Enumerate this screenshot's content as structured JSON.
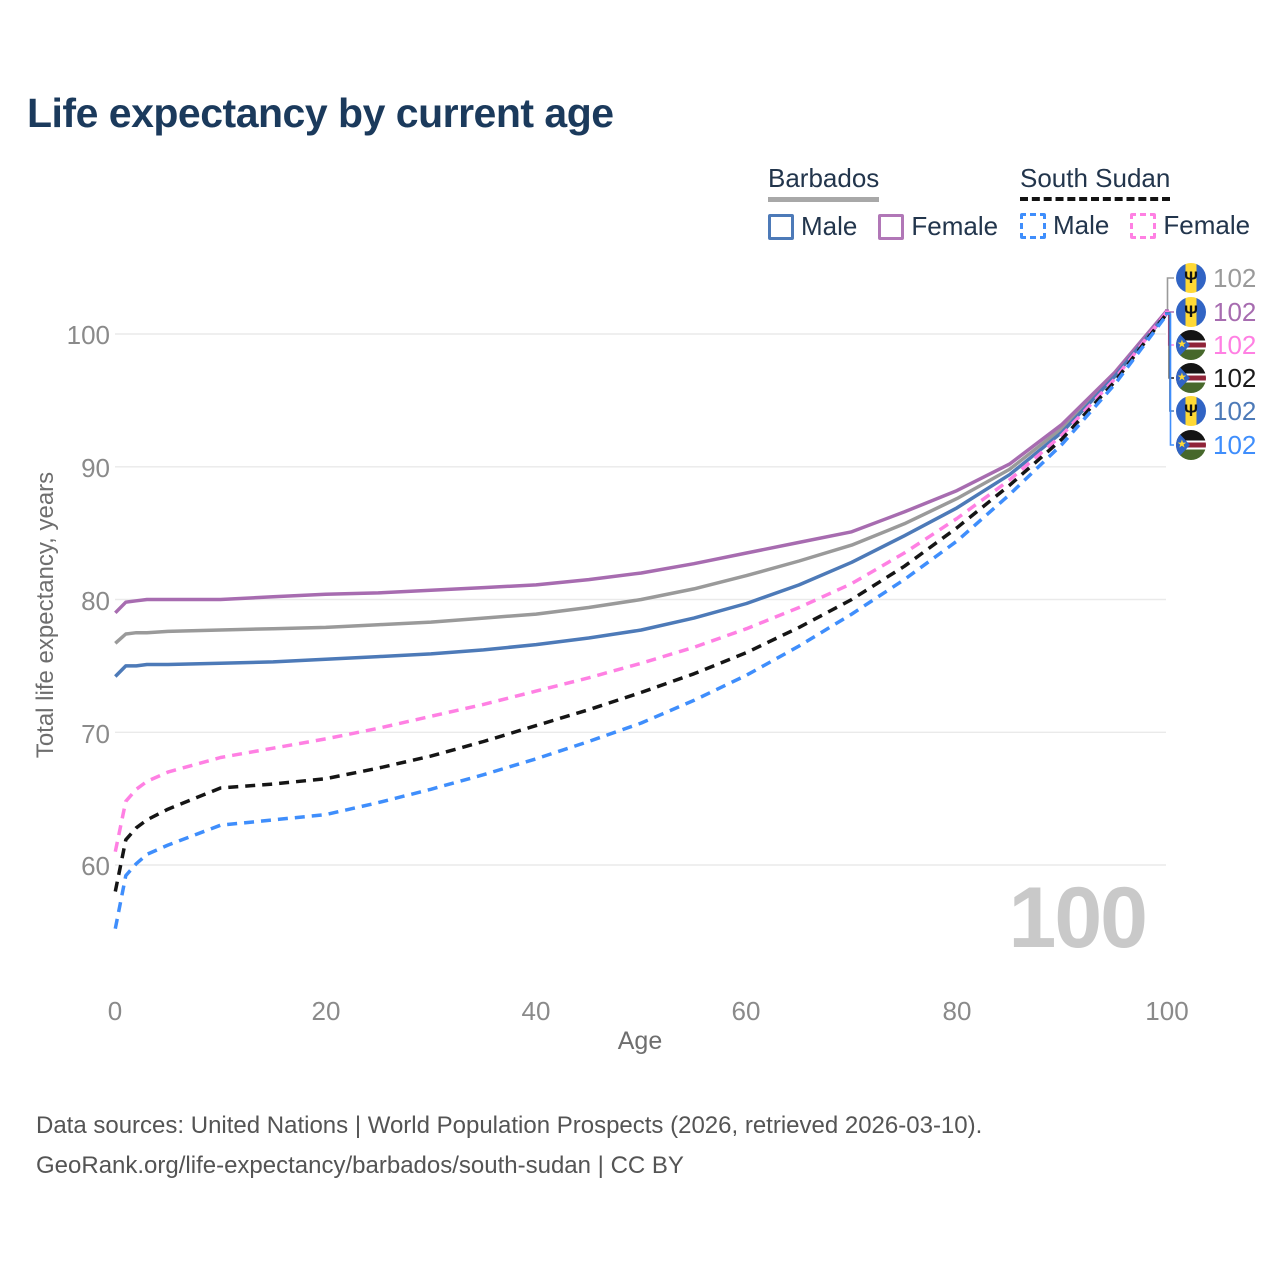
{
  "title": "Life expectancy by current age",
  "legend": {
    "groups": [
      {
        "name": "Barbados",
        "line_style": "solid",
        "underline_color": "#a8a8a8",
        "items": [
          {
            "label": "Male",
            "color": "#4d7ab8"
          },
          {
            "label": "Female",
            "color": "#b177b7"
          }
        ]
      },
      {
        "name": "South Sudan",
        "line_style": "dashed",
        "underline_color": "#131313",
        "items": [
          {
            "label": "Male",
            "color": "#3f8efc"
          },
          {
            "label": "Female",
            "color": "#ff80e3"
          }
        ]
      }
    ]
  },
  "chart_data": {
    "type": "line",
    "title": "Life expectancy by current age",
    "xlabel": "Age",
    "ylabel": "Total life expectancy, years",
    "xticks": [
      0,
      20,
      40,
      60,
      80,
      100
    ],
    "yticks": [
      60,
      70,
      80,
      90,
      100
    ],
    "xlim": [
      0,
      100
    ],
    "ylim": [
      55,
      103
    ],
    "grid": "horizontal-only",
    "legend_position": "top-right",
    "x": [
      0,
      1,
      2,
      3,
      5,
      10,
      15,
      20,
      25,
      30,
      35,
      40,
      45,
      50,
      55,
      60,
      65,
      70,
      75,
      80,
      85,
      90,
      95,
      100
    ],
    "series": [
      {
        "id": "bb_total",
        "country": "Barbados",
        "sex": "all",
        "color": "#9a9a9a",
        "dashed": false,
        "values": [
          76.7,
          77.4,
          77.5,
          77.5,
          77.6,
          77.7,
          77.8,
          77.9,
          78.1,
          78.3,
          78.6,
          78.9,
          79.4,
          80.0,
          80.8,
          81.8,
          82.9,
          84.1,
          85.7,
          87.6,
          89.8,
          92.9,
          96.9,
          101.7
        ]
      },
      {
        "id": "bb_female",
        "country": "Barbados",
        "sex": "female",
        "color": "#a76cb0",
        "dashed": false,
        "values": [
          79.0,
          79.8,
          79.9,
          80.0,
          80.0,
          80.0,
          80.2,
          80.4,
          80.5,
          80.7,
          80.9,
          81.1,
          81.5,
          82.0,
          82.7,
          83.5,
          84.3,
          85.1,
          86.6,
          88.2,
          90.2,
          93.2,
          97.1,
          101.8
        ]
      },
      {
        "id": "bb_male",
        "country": "Barbados",
        "sex": "male",
        "color": "#4d7ab8",
        "dashed": false,
        "values": [
          74.2,
          75.0,
          75.0,
          75.1,
          75.1,
          75.2,
          75.3,
          75.5,
          75.7,
          75.9,
          76.2,
          76.6,
          77.1,
          77.7,
          78.6,
          79.7,
          81.1,
          82.8,
          84.8,
          86.9,
          89.4,
          92.6,
          96.8,
          101.6
        ]
      },
      {
        "id": "ss_female",
        "country": "South Sudan",
        "sex": "female",
        "color": "#ff80e3",
        "dashed": true,
        "values": [
          61.0,
          64.8,
          65.7,
          66.3,
          67.0,
          68.1,
          68.8,
          69.5,
          70.3,
          71.2,
          72.1,
          73.1,
          74.1,
          75.2,
          76.4,
          77.8,
          79.4,
          81.2,
          83.5,
          86.1,
          89.0,
          92.4,
          96.6,
          101.7
        ]
      },
      {
        "id": "ss_total",
        "country": "South Sudan",
        "sex": "all",
        "color": "#151515",
        "dashed": true,
        "values": [
          58.0,
          61.9,
          62.8,
          63.4,
          64.2,
          65.8,
          66.1,
          66.5,
          67.3,
          68.2,
          69.3,
          70.5,
          71.7,
          73.0,
          74.4,
          76.0,
          77.9,
          80.0,
          82.5,
          85.4,
          88.6,
          92.1,
          96.4,
          101.6
        ]
      },
      {
        "id": "ss_male",
        "country": "South Sudan",
        "sex": "male",
        "color": "#3f8efc",
        "dashed": true,
        "values": [
          55.2,
          59.2,
          60.1,
          60.8,
          61.5,
          63.0,
          63.4,
          63.8,
          64.7,
          65.7,
          66.8,
          68.0,
          69.3,
          70.7,
          72.4,
          74.3,
          76.5,
          78.9,
          81.5,
          84.4,
          87.9,
          91.7,
          96.2,
          101.5
        ]
      }
    ]
  },
  "end_labels": {
    "rows": [
      {
        "flag": "barbados",
        "value": "102",
        "color": "#9a9a9a",
        "series_id": "bb_total"
      },
      {
        "flag": "barbados",
        "value": "102",
        "color": "#a76cb0",
        "series_id": "bb_female"
      },
      {
        "flag": "south-sudan",
        "value": "102",
        "color": "#ff80e3",
        "series_id": "ss_female"
      },
      {
        "flag": "south-sudan",
        "value": "102",
        "color": "#1a1a1a",
        "series_id": "ss_total"
      },
      {
        "flag": "barbados",
        "value": "102",
        "color": "#4d7ab8",
        "series_id": "bb_male"
      },
      {
        "flag": "south-sudan",
        "value": "102",
        "color": "#3f8efc",
        "series_id": "ss_male"
      }
    ]
  },
  "watermark": "100",
  "footer": {
    "line1": "Data sources: United Nations | World Population Prospects (2026, retrieved 2026-03-10).",
    "line2": "GeoRank.org/life-expectancy/barbados/south-sudan | CC BY"
  }
}
